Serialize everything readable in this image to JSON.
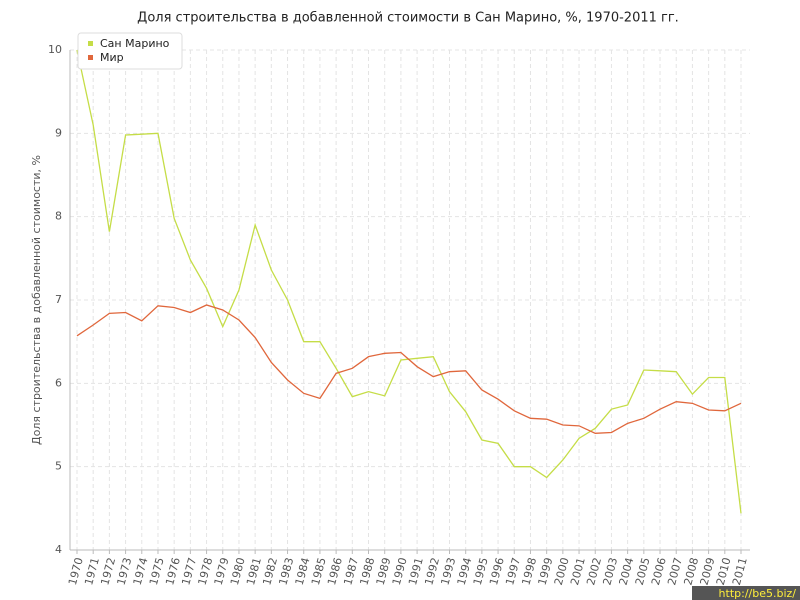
{
  "chart_data": {
    "type": "line",
    "title": "Доля строительства в добавленной стоимости в Сан Марино, %, 1970-2011 гг.",
    "y_label": "Доля строительства в добавленной стоимости, %",
    "watermark": "http://be5.biz/",
    "legend": "top-left",
    "grid": true,
    "x": [
      1970,
      1971,
      1972,
      1973,
      1974,
      1975,
      1976,
      1977,
      1978,
      1979,
      1980,
      1981,
      1982,
      1983,
      1984,
      1985,
      1986,
      1987,
      1988,
      1989,
      1990,
      1991,
      1992,
      1993,
      1994,
      1995,
      1996,
      1997,
      1998,
      1999,
      2000,
      2001,
      2002,
      2003,
      2004,
      2005,
      2006,
      2007,
      2008,
      2009,
      2010,
      2011
    ],
    "xlim": [
      1970,
      2011
    ],
    "ylim": [
      4,
      10
    ],
    "yticks": [
      4,
      5,
      6,
      7,
      8,
      9,
      10
    ],
    "series": [
      {
        "name": "Сан Марино",
        "color": "#c5dd47",
        "values": [
          10.0,
          9.1,
          7.82,
          8.98,
          8.99,
          9.0,
          7.98,
          7.48,
          7.14,
          6.68,
          7.12,
          7.9,
          7.36,
          7.0,
          6.5,
          6.5,
          6.18,
          5.84,
          5.9,
          5.85,
          6.28,
          6.3,
          6.32,
          5.9,
          5.66,
          5.32,
          5.28,
          5.0,
          5.0,
          4.87,
          5.08,
          5.34,
          5.46,
          5.69,
          5.74,
          6.16,
          6.15,
          6.14,
          5.87,
          6.07,
          6.07,
          4.44
        ]
      },
      {
        "name": "Мир",
        "color": "#e0673c",
        "values": [
          6.57,
          6.7,
          6.84,
          6.85,
          6.75,
          6.93,
          6.91,
          6.85,
          6.94,
          6.88,
          6.76,
          6.55,
          6.25,
          6.04,
          5.88,
          5.82,
          6.12,
          6.18,
          6.32,
          6.36,
          6.37,
          6.2,
          6.08,
          6.14,
          6.15,
          5.92,
          5.81,
          5.67,
          5.58,
          5.57,
          5.5,
          5.49,
          5.4,
          5.41,
          5.52,
          5.58,
          5.69,
          5.78,
          5.76,
          5.68,
          5.67,
          5.76
        ]
      }
    ]
  }
}
